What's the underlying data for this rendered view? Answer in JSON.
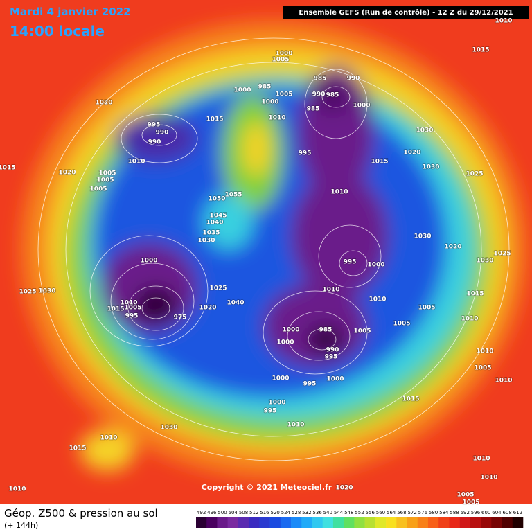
{
  "header": {
    "date": "Mardi 4 janvier 2022",
    "time": "14:00 locale",
    "run": "Ensemble GEFS  (Run de contrôle)  -  12 Z du 29/12/2021"
  },
  "copyright": "Copyright © 2021 Meteociel.fr",
  "footer": {
    "title": "Géop. Z500 & pression au sol",
    "subtitle": "(+ 144h)"
  },
  "legend": {
    "values": [
      492,
      496,
      500,
      504,
      508,
      512,
      516,
      520,
      524,
      528,
      532,
      536,
      540,
      544,
      548,
      552,
      556,
      560,
      564,
      568,
      572,
      576,
      580,
      584,
      588,
      592,
      596,
      600,
      604,
      608,
      612
    ],
    "colors": [
      "#2a0033",
      "#4a0060",
      "#6a1a8a",
      "#7a2aa0",
      "#5a2ab0",
      "#3a2ac0",
      "#2a3ad0",
      "#1a4ae0",
      "#1a6af0",
      "#1a8af8",
      "#20aaf8",
      "#30c8f0",
      "#40e0e0",
      "#40e0a0",
      "#60e060",
      "#90e040",
      "#b8e030",
      "#e0e828",
      "#f8e020",
      "#f8c020",
      "#f8a018",
      "#f88018",
      "#f86018",
      "#f04018",
      "#e82818",
      "#d01818",
      "#b81010",
      "#980808",
      "#780404",
      "#500000",
      "#200000"
    ]
  },
  "isobars": [
    1020,
    1015,
    1020,
    1005,
    1005,
    1005,
    995,
    990,
    990,
    1010,
    1015,
    1000,
    985,
    1000,
    1005,
    1000,
    1005,
    1010,
    995,
    985,
    990,
    990,
    985,
    1000,
    985,
    1030,
    1020,
    1015,
    1030,
    1025,
    1010,
    1055,
    1050,
    1045,
    1040,
    1035,
    1030,
    1030,
    1020,
    1025,
    1030,
    1000,
    995,
    1000,
    1025,
    1030,
    1025,
    1015,
    1010,
    1010,
    1040,
    1010,
    1005,
    1015,
    1020,
    1005,
    995,
    975,
    1005,
    1010,
    1000,
    985,
    1005,
    1000,
    990,
    995,
    1010,
    1005,
    1000,
    995,
    1000,
    1010,
    1015,
    1000,
    995,
    1010,
    1030,
    1010,
    1015,
    1010,
    1010,
    1020,
    1010,
    1005,
    1005,
    1015,
    1010
  ]
}
